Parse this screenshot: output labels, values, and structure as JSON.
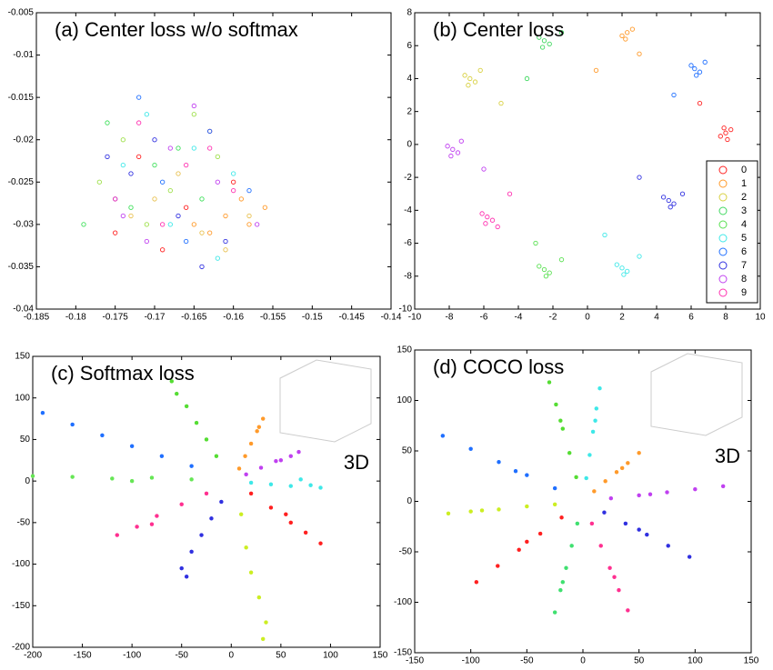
{
  "chart_data": [
    {
      "type": "scatter",
      "title": "(a) Center loss w/o softmax",
      "marker": "open",
      "xlim": [
        -0.185,
        -0.14
      ],
      "xticks": [
        -0.185,
        -0.18,
        -0.175,
        -0.17,
        -0.165,
        -0.16,
        -0.155,
        -0.15,
        -0.145,
        -0.14
      ],
      "ylim": [
        -0.04,
        -0.005
      ],
      "yticks": [
        -0.04,
        -0.035,
        -0.03,
        -0.025,
        -0.02,
        -0.015,
        -0.01,
        -0.005
      ],
      "series": [
        {
          "color": "#ff2020",
          "x": [
            -0.172,
            -0.166,
            -0.16,
            -0.175,
            -0.163,
            -0.169
          ],
          "y": [
            -0.022,
            -0.028,
            -0.025,
            -0.031,
            -0.019,
            -0.033
          ]
        },
        {
          "color": "#ff9a2a",
          "x": [
            -0.161,
            -0.158,
            -0.156,
            -0.163,
            -0.159,
            -0.165
          ],
          "y": [
            -0.029,
            -0.03,
            -0.028,
            -0.031,
            -0.027,
            -0.03
          ]
        },
        {
          "color": "#e8c050",
          "x": [
            -0.17,
            -0.164,
            -0.158,
            -0.167,
            -0.173,
            -0.161
          ],
          "y": [
            -0.027,
            -0.031,
            -0.029,
            -0.024,
            -0.029,
            -0.033
          ]
        },
        {
          "color": "#9ee04a",
          "x": [
            -0.174,
            -0.168,
            -0.162,
            -0.171,
            -0.165,
            -0.177
          ],
          "y": [
            -0.02,
            -0.026,
            -0.022,
            -0.03,
            -0.017,
            -0.025
          ]
        },
        {
          "color": "#3ee05a",
          "x": [
            -0.176,
            -0.17,
            -0.164,
            -0.173,
            -0.167,
            -0.179
          ],
          "y": [
            -0.018,
            -0.023,
            -0.027,
            -0.028,
            -0.021,
            -0.03
          ]
        },
        {
          "color": "#3ee8e8",
          "x": [
            -0.171,
            -0.165,
            -0.16,
            -0.174,
            -0.168,
            -0.162
          ],
          "y": [
            -0.017,
            -0.021,
            -0.024,
            -0.023,
            -0.03,
            -0.034
          ]
        },
        {
          "color": "#1f6fff",
          "x": [
            -0.169,
            -0.163,
            -0.175,
            -0.166,
            -0.172,
            -0.158
          ],
          "y": [
            -0.025,
            -0.019,
            -0.027,
            -0.032,
            -0.015,
            -0.026
          ]
        },
        {
          "color": "#3030e0",
          "x": [
            -0.167,
            -0.173,
            -0.161,
            -0.17,
            -0.164,
            -0.176
          ],
          "y": [
            -0.029,
            -0.024,
            -0.032,
            -0.02,
            -0.035,
            -0.022
          ]
        },
        {
          "color": "#c040f0",
          "x": [
            -0.168,
            -0.162,
            -0.174,
            -0.165,
            -0.171,
            -0.157
          ],
          "y": [
            -0.021,
            -0.025,
            -0.029,
            -0.016,
            -0.032,
            -0.03
          ]
        },
        {
          "color": "#ff30b0",
          "x": [
            -0.166,
            -0.172,
            -0.16,
            -0.169,
            -0.163,
            -0.175
          ],
          "y": [
            -0.023,
            -0.018,
            -0.026,
            -0.03,
            -0.021,
            -0.027
          ]
        }
      ]
    },
    {
      "type": "scatter",
      "title": "(b) Center loss",
      "marker": "open",
      "legend": "right",
      "xlim": [
        -10,
        10
      ],
      "xticks": [
        -10,
        -8,
        -6,
        -4,
        -2,
        0,
        2,
        4,
        6,
        8,
        10
      ],
      "ylim": [
        -10,
        8
      ],
      "yticks": [
        -10,
        -8,
        -6,
        -4,
        -2,
        0,
        2,
        4,
        6,
        8
      ],
      "series": [
        {
          "name": "0",
          "color": "#ff2020",
          "x": [
            8,
            8.3,
            7.7,
            8.1,
            6.5,
            7.9
          ],
          "y": [
            0.7,
            0.9,
            0.5,
            0.3,
            2.5,
            1
          ]
        },
        {
          "name": "1",
          "color": "#ff9a2a",
          "x": [
            2.3,
            2,
            2.6,
            2.2,
            0.5,
            3
          ],
          "y": [
            6.8,
            6.6,
            7,
            6.4,
            4.5,
            5.5
          ]
        },
        {
          "name": "2",
          "color": "#d8d040",
          "x": [
            -6.8,
            -7.1,
            -6.5,
            -6.9,
            -5,
            -6.2
          ],
          "y": [
            4,
            4.2,
            3.8,
            3.6,
            2.5,
            4.5
          ]
        },
        {
          "name": "3",
          "color": "#40d860",
          "x": [
            -2.5,
            -2.8,
            -2.2,
            -2.6,
            -3.5,
            -1.5
          ],
          "y": [
            6.3,
            6.5,
            6.1,
            5.9,
            4,
            6.8
          ]
        },
        {
          "name": "4",
          "color": "#58e050",
          "x": [
            -2.5,
            -2.8,
            -2.2,
            -2.4,
            -3,
            -1.5
          ],
          "y": [
            -7.6,
            -7.4,
            -7.8,
            -8,
            -6,
            -7
          ]
        },
        {
          "name": "5",
          "color": "#3ee8e8",
          "x": [
            2,
            1.7,
            2.3,
            2.1,
            1,
            3
          ],
          "y": [
            -7.5,
            -7.3,
            -7.7,
            -7.9,
            -5.5,
            -6.8
          ]
        },
        {
          "name": "6",
          "color": "#1f6fff",
          "x": [
            6.2,
            6,
            6.5,
            6.3,
            5,
            6.8
          ],
          "y": [
            4.6,
            4.8,
            4.4,
            4.2,
            3,
            5
          ]
        },
        {
          "name": "7",
          "color": "#3030e0",
          "x": [
            4.7,
            4.4,
            5,
            4.8,
            3,
            5.5
          ],
          "y": [
            -3.4,
            -3.2,
            -3.6,
            -3.8,
            -2,
            -3
          ]
        },
        {
          "name": "8",
          "color": "#c040f0",
          "x": [
            -7.8,
            -8.1,
            -7.5,
            -7.9,
            -6,
            -7.3
          ],
          "y": [
            -0.3,
            -0.1,
            -0.5,
            -0.7,
            -1.5,
            0.2
          ]
        },
        {
          "name": "9",
          "color": "#ff30b0",
          "x": [
            -5.8,
            -6.1,
            -5.5,
            -5.9,
            -4.5,
            -5.2
          ],
          "y": [
            -4.4,
            -4.2,
            -4.6,
            -4.8,
            -3,
            -5
          ]
        }
      ]
    },
    {
      "type": "scatter",
      "title": "(c) Softmax loss",
      "marker": "filled",
      "annotation": "3D",
      "xlim": [
        -200,
        150
      ],
      "xticks": [
        -200,
        -150,
        -100,
        -50,
        0,
        50,
        100,
        150
      ],
      "ylim": [
        -200,
        150
      ],
      "yticks": [
        -200,
        -150,
        -100,
        -50,
        0,
        50,
        100,
        150
      ],
      "series": [
        {
          "color": "#1f6fff",
          "x": [
            -40,
            -70,
            -100,
            -130,
            -160,
            -190
          ],
          "y": [
            18,
            30,
            42,
            55,
            68,
            82
          ]
        },
        {
          "color": "#66e655",
          "x": [
            -40,
            -80,
            -120,
            -160,
            -200,
            -100
          ],
          "y": [
            2,
            4,
            3,
            5,
            6,
            0
          ]
        },
        {
          "color": "#55dd33",
          "x": [
            -15,
            -25,
            -35,
            -45,
            -55,
            -60
          ],
          "y": [
            30,
            50,
            70,
            90,
            105,
            120
          ]
        },
        {
          "color": "#ff9a2a",
          "x": [
            8,
            14,
            20,
            26,
            32,
            28
          ],
          "y": [
            15,
            30,
            45,
            60,
            75,
            65
          ]
        },
        {
          "color": "#c040f0",
          "x": [
            15,
            30,
            45,
            60,
            68,
            50
          ],
          "y": [
            8,
            16,
            24,
            30,
            35,
            25
          ]
        },
        {
          "color": "#3ee8e8",
          "x": [
            20,
            40,
            60,
            80,
            90,
            70
          ],
          "y": [
            -2,
            -4,
            -6,
            -5,
            -8,
            2
          ]
        },
        {
          "color": "#ff2020",
          "x": [
            20,
            40,
            60,
            75,
            90,
            55
          ],
          "y": [
            -15,
            -32,
            -50,
            -62,
            -75,
            -40
          ]
        },
        {
          "color": "#ccee22",
          "x": [
            10,
            15,
            20,
            28,
            35,
            32
          ],
          "y": [
            -40,
            -80,
            -110,
            -140,
            -170,
            -190
          ]
        },
        {
          "color": "#3030e0",
          "x": [
            -10,
            -20,
            -30,
            -40,
            -50,
            -45
          ],
          "y": [
            -25,
            -45,
            -65,
            -85,
            -105,
            -115
          ]
        },
        {
          "color": "#ff3090",
          "x": [
            -25,
            -50,
            -75,
            -95,
            -115,
            -80
          ],
          "y": [
            -15,
            -28,
            -42,
            -55,
            -65,
            -52
          ]
        }
      ]
    },
    {
      "type": "scatter",
      "title": "(d) COCO loss",
      "marker": "filled",
      "annotation": "3D",
      "xlim": [
        -150,
        150
      ],
      "xticks": [
        -150,
        -100,
        -50,
        0,
        50,
        100,
        150
      ],
      "ylim": [
        -150,
        150
      ],
      "yticks": [
        -150,
        -100,
        -50,
        0,
        50,
        100,
        150
      ],
      "series": [
        {
          "color": "#1f6fff",
          "x": [
            -25,
            -50,
            -75,
            -100,
            -125,
            -60
          ],
          "y": [
            13,
            26,
            39,
            52,
            65,
            30
          ]
        },
        {
          "color": "#ccee22",
          "x": [
            -25,
            -50,
            -75,
            -100,
            -120,
            -90
          ],
          "y": [
            -3,
            -5,
            -8,
            -10,
            -12,
            -9
          ]
        },
        {
          "color": "#55dd33",
          "x": [
            -6,
            -12,
            -18,
            -24,
            -30,
            -20
          ],
          "y": [
            24,
            48,
            72,
            96,
            118,
            80
          ]
        },
        {
          "color": "#3ee8e8",
          "x": [
            3,
            6,
            9,
            12,
            15,
            11
          ],
          "y": [
            23,
            46,
            69,
            92,
            112,
            80
          ]
        },
        {
          "color": "#ff9a2a",
          "x": [
            10,
            20,
            30,
            40,
            50,
            35
          ],
          "y": [
            10,
            20,
            29,
            38,
            48,
            33
          ]
        },
        {
          "color": "#c040f0",
          "x": [
            25,
            50,
            75,
            100,
            125,
            60
          ],
          "y": [
            3,
            6,
            9,
            12,
            15,
            7
          ]
        },
        {
          "color": "#3030e0",
          "x": [
            19,
            38,
            57,
            76,
            95,
            50
          ],
          "y": [
            -11,
            -22,
            -33,
            -44,
            -55,
            -28
          ]
        },
        {
          "color": "#ff3090",
          "x": [
            8,
            16,
            24,
            32,
            40,
            28
          ],
          "y": [
            -22,
            -44,
            -66,
            -88,
            -108,
            -75
          ]
        },
        {
          "color": "#40e070",
          "x": [
            -5,
            -10,
            -15,
            -20,
            -25,
            -18
          ],
          "y": [
            -22,
            -44,
            -66,
            -88,
            -110,
            -80
          ]
        },
        {
          "color": "#ff2020",
          "x": [
            -19,
            -38,
            -57,
            -76,
            -95,
            -50
          ],
          "y": [
            -16,
            -32,
            -48,
            -64,
            -80,
            -40
          ]
        }
      ]
    }
  ]
}
